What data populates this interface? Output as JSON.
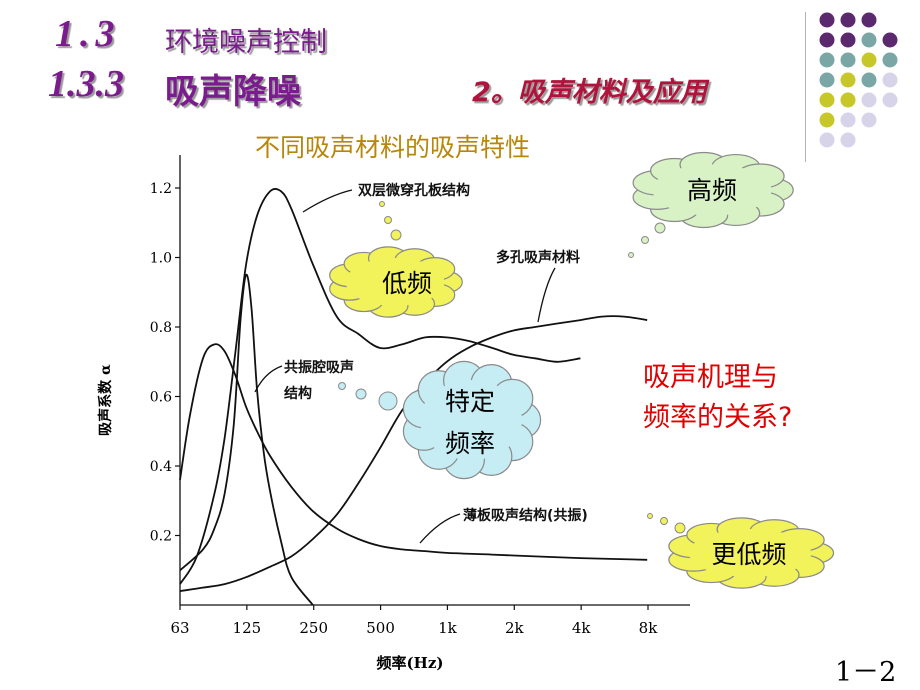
{
  "header": {
    "section_number": "1.3",
    "section_title": "环境噪声控制",
    "subsection_number": "1.3.3",
    "subsection_title": "吸声降噪",
    "topic": "2。吸声材料及应用"
  },
  "chart_title": "不同吸声材料的吸声特性",
  "mechanism_question": {
    "line1": "吸声机理与",
    "line2": "频率的关系?"
  },
  "clouds": {
    "high": "高频",
    "low": "低频",
    "specific_line1": "特定",
    "specific_line2": "频率",
    "lower": "更低频"
  },
  "slide_number": "1－2",
  "colors": {
    "title_purple": "#7b1c8e",
    "topic_red": "#b0133b",
    "chart_title_gold": "#b8860b",
    "question_red": "#e00000",
    "cloud_yellow": "#f2f25a",
    "cloud_green": "#d8f2c6",
    "cloud_blue": "#c6ecf4",
    "dot_purple": "#5b2a6e",
    "dot_teal": "#7aa6a6",
    "dot_yellow": "#c7c72a",
    "dot_lavender": "#d7d4ea"
  },
  "chart_data": {
    "type": "line",
    "xlabel": "频率(Hz)",
    "ylabel": "吸声系数 α",
    "x_ticks": [
      "63",
      "125",
      "250",
      "500",
      "1k",
      "2k",
      "4k",
      "8k"
    ],
    "x_scale": "log",
    "y_ticks": [
      "0.2",
      "0.4",
      "0.6",
      "0.8",
      "1.0",
      "1.2"
    ],
    "ylim": [
      0.0,
      1.3
    ],
    "series": [
      {
        "name": "双层微穿孔板结构",
        "x": [
          63,
          75,
          90,
          100,
          112,
          125,
          140,
          160,
          180,
          200,
          250,
          320,
          400,
          500,
          630,
          800,
          1000,
          1250,
          1600,
          2000,
          2500,
          3150,
          4000
        ],
        "y": [
          0.06,
          0.14,
          0.32,
          0.48,
          0.73,
          0.98,
          1.12,
          1.19,
          1.19,
          1.14,
          0.98,
          0.83,
          0.78,
          0.74,
          0.75,
          0.77,
          0.77,
          0.76,
          0.74,
          0.72,
          0.71,
          0.7,
          0.71
        ]
      },
      {
        "name": "多孔吸声材料",
        "x": [
          63,
          80,
          100,
          125,
          160,
          200,
          250,
          320,
          400,
          500,
          630,
          800,
          1000,
          1250,
          1600,
          2000,
          2500,
          3150,
          4000,
          5000,
          6300,
          8000
        ],
        "y": [
          0.04,
          0.05,
          0.06,
          0.08,
          0.11,
          0.14,
          0.19,
          0.26,
          0.35,
          0.45,
          0.56,
          0.64,
          0.7,
          0.74,
          0.77,
          0.79,
          0.8,
          0.81,
          0.82,
          0.83,
          0.83,
          0.82
        ]
      },
      {
        "name": "共振腔吸声结构",
        "x": [
          63,
          80,
          90,
          100,
          110,
          118,
          125,
          132,
          140,
          150,
          160,
          180,
          200,
          250
        ],
        "y": [
          0.1,
          0.16,
          0.22,
          0.32,
          0.52,
          0.82,
          0.95,
          0.86,
          0.62,
          0.44,
          0.33,
          0.18,
          0.08,
          0.0
        ]
      },
      {
        "name": "薄板吸声结构(共振)",
        "x": [
          63,
          70,
          80,
          90,
          100,
          112,
          125,
          140,
          160,
          200,
          250,
          320,
          400,
          500,
          630,
          800,
          1000,
          1600,
          2500,
          4000,
          8000
        ],
        "y": [
          0.36,
          0.55,
          0.71,
          0.75,
          0.73,
          0.66,
          0.57,
          0.5,
          0.43,
          0.34,
          0.27,
          0.22,
          0.19,
          0.17,
          0.16,
          0.155,
          0.15,
          0.145,
          0.14,
          0.135,
          0.13
        ]
      }
    ],
    "annotations": [
      {
        "text": "双层微穿孔板结构",
        "points_to": "双层微穿孔板结构"
      },
      {
        "text": "多孔吸声材料",
        "points_to": "多孔吸声材料"
      },
      {
        "text_line1": "共振腔吸声",
        "text_line2": "结构",
        "points_to": "共振腔吸声结构"
      },
      {
        "text": "薄板吸声结构(共振)",
        "points_to": "薄板吸声结构(共振)"
      }
    ]
  }
}
